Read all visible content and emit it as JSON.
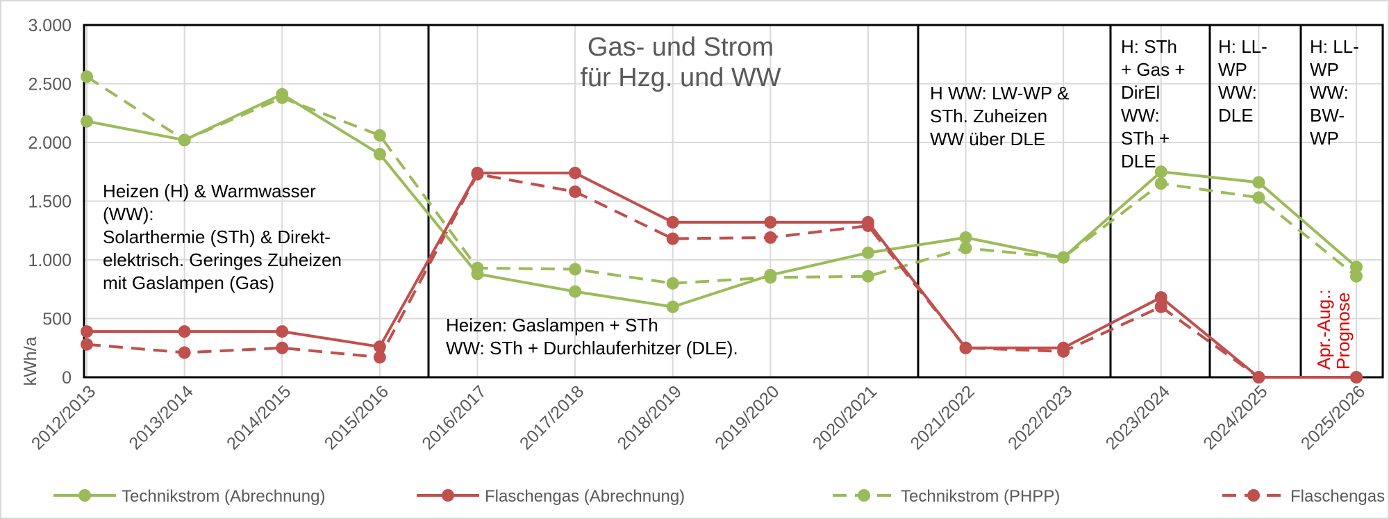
{
  "chart_data": {
    "type": "line",
    "title": "Gas- und Strom für Hzg. und WW",
    "title_lines": [
      "Gas- und Strom",
      "für Hzg. und WW"
    ],
    "ylabel": "kWh/a",
    "xlabel": "",
    "ylim": [
      0,
      3000
    ],
    "yticks": [
      0,
      500,
      1000,
      1500,
      2000,
      2500,
      3000
    ],
    "ytick_labels": [
      "0",
      "500",
      "1.000",
      "1.500",
      "2.000",
      "2.500",
      "3.000"
    ],
    "grid": true,
    "legend_position": "bottom",
    "categories": [
      "2012/2013",
      "2013/2014",
      "2014/2015",
      "2015/2016",
      "2016/2017",
      "2017/2018",
      "2018/2019",
      "2019/2020",
      "2020/2021",
      "2021/2022",
      "2022/2023",
      "2023/2024",
      "2024/2025",
      "2025/2026"
    ],
    "series": [
      {
        "name": "Technikstrom (Abrechnung)",
        "color": "#9BBB59",
        "dash": false,
        "values": [
          2180,
          2020,
          2410,
          1900,
          880,
          730,
          600,
          870,
          1060,
          1190,
          1020,
          1750,
          1660,
          940
        ]
      },
      {
        "name": "Flaschengas (Abrechnung)",
        "color": "#C0504D",
        "dash": false,
        "values": [
          390,
          390,
          390,
          260,
          1740,
          1740,
          1320,
          1320,
          1320,
          250,
          250,
          680,
          0,
          0
        ]
      },
      {
        "name": "Technikstrom (PHPP)",
        "color": "#9BBB59",
        "dash": true,
        "values": [
          2560,
          2020,
          2380,
          2060,
          930,
          920,
          800,
          850,
          860,
          1100,
          1020,
          1650,
          1530,
          860
        ]
      },
      {
        "name": "Flaschengas (PHPP)",
        "color": "#C0504D",
        "dash": true,
        "values": [
          280,
          210,
          250,
          170,
          1730,
          1580,
          1180,
          1190,
          1290,
          250,
          220,
          600,
          0,
          0
        ]
      }
    ],
    "annotations": [
      {
        "id": "phase-1",
        "lines": [
          "Heizen (H) & Warmwasser",
          "(WW):",
          "Solarthermie (STh) & Direkt-",
          "elektrisch. Geringes Zuheizen",
          "mit Gaslampen (Gas)"
        ]
      },
      {
        "id": "phase-2",
        "lines": [
          "Heizen: Gaslampen + STh",
          "WW: STh + Durchlauferhitzer (DLE)."
        ]
      },
      {
        "id": "phase-3",
        "lines": [
          "H WW: LW-WP &",
          "STh. Zuheizen",
          "WW über DLE"
        ]
      },
      {
        "id": "phase-4",
        "lines": [
          "H: STh",
          "+ Gas +",
          "DirEl",
          "WW:",
          "STh +",
          "DLE"
        ]
      },
      {
        "id": "phase-5",
        "lines": [
          "H: LL-",
          "WP",
          "WW:",
          "DLE"
        ]
      },
      {
        "id": "phase-6",
        "lines": [
          "H: LL-",
          "WP",
          "WW:",
          "BW-",
          "WP"
        ]
      },
      {
        "id": "forecast-note",
        "lines": [
          "Apr.-Aug.:",
          "Prognose"
        ],
        "color": "#E00000"
      }
    ]
  }
}
